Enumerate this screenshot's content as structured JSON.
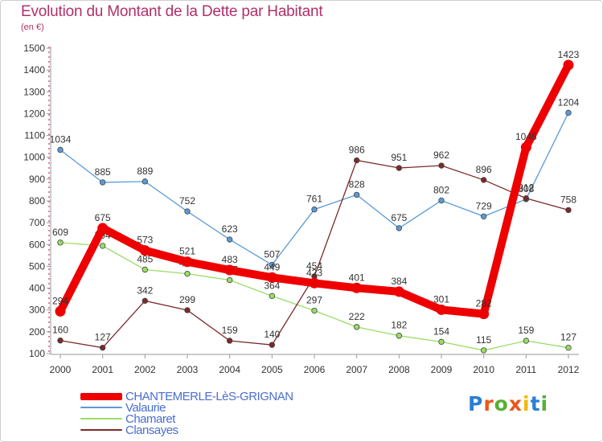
{
  "title": "Evolution du Montant de la Dette par Habitant",
  "subtitle": "(en €)",
  "logo_text": "Proxiti",
  "logo_colors": [
    "#2a7fd4",
    "#e8571d",
    "#58b030",
    "#e8571d",
    "#f5b800",
    "#2a7fd4",
    "#58b030"
  ],
  "chart_data": {
    "type": "line",
    "title": "Evolution du Montant de la Dette par Habitant",
    "ylabel": "(en €)",
    "xlabel": "",
    "ylim": [
      100,
      1500
    ],
    "yticks": [
      100,
      200,
      300,
      400,
      500,
      600,
      700,
      800,
      900,
      1000,
      1100,
      1200,
      1300,
      1400,
      1500
    ],
    "x": [
      "2000",
      "2001",
      "2002",
      "2003",
      "2004",
      "2005",
      "2006",
      "2007",
      "2008",
      "2009",
      "2010",
      "2011",
      "2012"
    ],
    "grid": false,
    "legend_position": "bottom-left",
    "series": [
      {
        "name": "CHANTEMERLE-LèS-GRIGNAN",
        "color": "#ee0000",
        "emphasis": true,
        "values": [
          294,
          675,
          573,
          521,
          483,
          449,
          423,
          401,
          384,
          301,
          282,
          1046,
          1423
        ]
      },
      {
        "name": "Valaurie",
        "color": "#5b9bd5",
        "values": [
          1034,
          885,
          889,
          752,
          623,
          507,
          761,
          828,
          675,
          802,
          729,
          808,
          1204
        ]
      },
      {
        "name": "Chamaret",
        "color": "#99dd66",
        "values": [
          609,
          594,
          485,
          466,
          437,
          364,
          297,
          222,
          182,
          154,
          115,
          159,
          127
        ]
      },
      {
        "name": "Clansayes",
        "color": "#7a2a2a",
        "values": [
          160,
          127,
          342,
          299,
          159,
          140,
          454,
          986,
          951,
          962,
          896,
          812,
          758
        ]
      }
    ]
  }
}
